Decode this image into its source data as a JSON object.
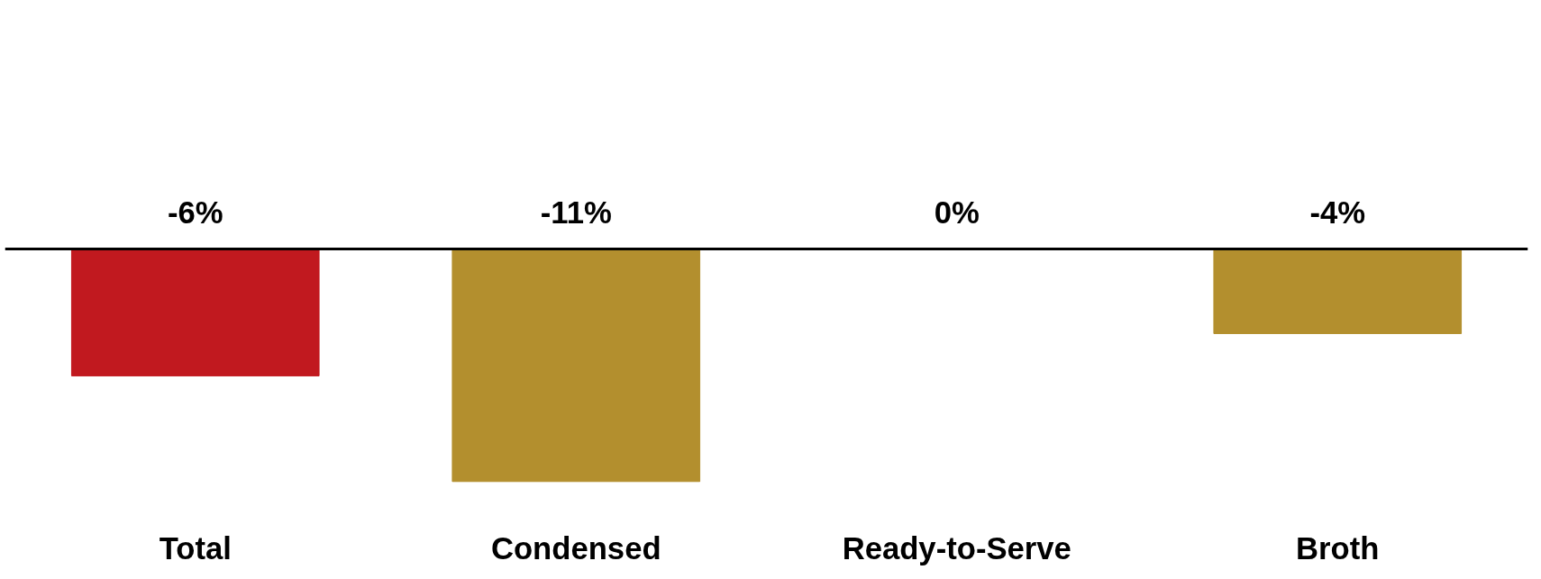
{
  "chart_data": {
    "type": "bar",
    "categories": [
      "Total",
      "Condensed",
      "Ready-to-Serve",
      "Broth"
    ],
    "values": [
      -6,
      -11,
      0,
      -4
    ],
    "colors": [
      "#c1191f",
      "#b38f2e",
      "#b38f2e",
      "#b38f2e"
    ],
    "value_labels": [
      "-6%",
      "-11%",
      "0%",
      "-4%"
    ],
    "tick_labels": "x",
    "grid": false
  }
}
